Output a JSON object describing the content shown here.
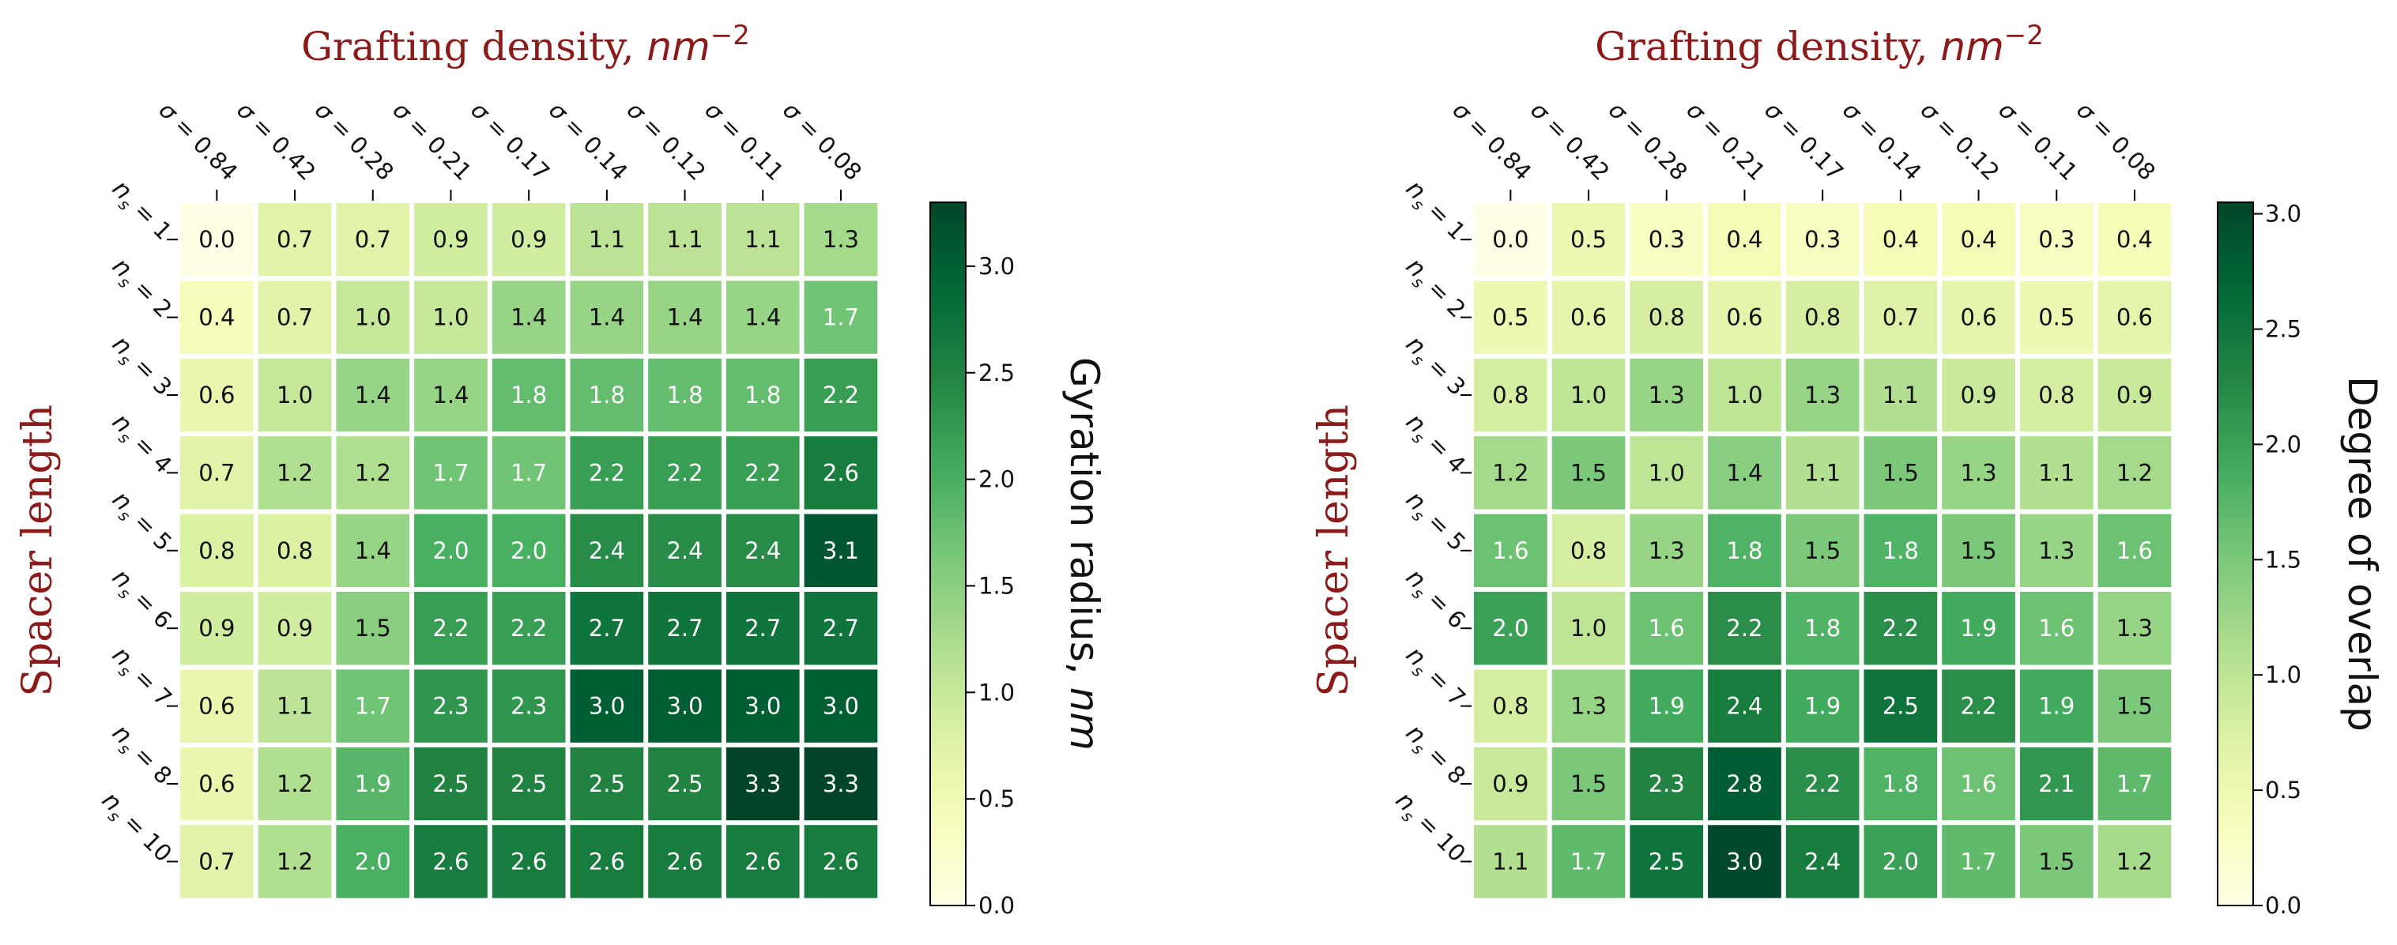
{
  "chart_data": [
    {
      "type": "heatmap",
      "title": "Grafting density, nm^-2",
      "title_main": "Grafting density, ",
      "title_unit": "nm",
      "title_exp": "−2",
      "ylabel": "Spacer length",
      "colorbar_label_main": "Gyration radius, ",
      "colorbar_label_unit": "nm",
      "colorbar_range": [
        0,
        3.3
      ],
      "colorbar_ticks": [
        "0.0",
        "0.5",
        "1.0",
        "1.5",
        "2.0",
        "2.5",
        "3.0"
      ],
      "colormap": "YlGn",
      "columns": [
        "σ = 0.84",
        "σ = 0.42",
        "σ = 0.28",
        "σ = 0.21",
        "σ = 0.17",
        "σ = 0.14",
        "σ = 0.12",
        "σ = 0.11",
        "σ = 0.08"
      ],
      "rows": [
        "1",
        "2",
        "3",
        "4",
        "5",
        "6",
        "7",
        "8",
        "10"
      ],
      "values": [
        [
          0.0,
          0.7,
          0.7,
          0.9,
          0.9,
          1.1,
          1.1,
          1.1,
          1.3
        ],
        [
          0.4,
          0.7,
          1.0,
          1.0,
          1.4,
          1.4,
          1.4,
          1.4,
          1.7
        ],
        [
          0.6,
          1.0,
          1.4,
          1.4,
          1.8,
          1.8,
          1.8,
          1.8,
          2.2
        ],
        [
          0.7,
          1.2,
          1.2,
          1.7,
          1.7,
          2.2,
          2.2,
          2.2,
          2.6
        ],
        [
          0.8,
          0.8,
          1.4,
          2.0,
          2.0,
          2.4,
          2.4,
          2.4,
          3.1
        ],
        [
          0.9,
          0.9,
          1.5,
          2.2,
          2.2,
          2.7,
          2.7,
          2.7,
          2.7
        ],
        [
          0.6,
          1.1,
          1.7,
          2.3,
          2.3,
          3.0,
          3.0,
          3.0,
          3.0
        ],
        [
          0.6,
          1.2,
          1.9,
          2.5,
          2.5,
          2.5,
          2.5,
          3.3,
          3.3
        ],
        [
          0.7,
          1.2,
          2.0,
          2.6,
          2.6,
          2.6,
          2.6,
          2.6,
          2.6
        ]
      ]
    },
    {
      "type": "heatmap",
      "title": "Grafting density, nm^-2",
      "title_main": "Grafting density, ",
      "title_unit": "nm",
      "title_exp": "−2",
      "ylabel": "Spacer length",
      "colorbar_label_main": "Degree of overlap",
      "colorbar_label_unit": "",
      "colorbar_range": [
        0,
        3.05
      ],
      "colorbar_ticks": [
        "0.0",
        "0.5",
        "1.0",
        "1.5",
        "2.0",
        "2.5",
        "3.0"
      ],
      "colormap": "YlGn",
      "columns": [
        "σ = 0.84",
        "σ = 0.42",
        "σ = 0.28",
        "σ = 0.21",
        "σ = 0.17",
        "σ = 0.14",
        "σ = 0.12",
        "σ = 0.11",
        "σ = 0.08"
      ],
      "rows": [
        "1",
        "2",
        "3",
        "4",
        "5",
        "6",
        "7",
        "8",
        "10"
      ],
      "values": [
        [
          0.0,
          0.5,
          0.3,
          0.4,
          0.3,
          0.4,
          0.4,
          0.3,
          0.4
        ],
        [
          0.5,
          0.6,
          0.8,
          0.6,
          0.8,
          0.7,
          0.6,
          0.5,
          0.6
        ],
        [
          0.8,
          1.0,
          1.3,
          1.0,
          1.3,
          1.1,
          0.9,
          0.8,
          0.9
        ],
        [
          1.2,
          1.5,
          1.0,
          1.4,
          1.1,
          1.5,
          1.3,
          1.1,
          1.2
        ],
        [
          1.6,
          0.8,
          1.3,
          1.8,
          1.5,
          1.8,
          1.5,
          1.3,
          1.6
        ],
        [
          2.0,
          1.0,
          1.6,
          2.2,
          1.8,
          2.2,
          1.9,
          1.6,
          1.3
        ],
        [
          0.8,
          1.3,
          1.9,
          2.4,
          1.9,
          2.5,
          2.2,
          1.9,
          1.5
        ],
        [
          0.9,
          1.5,
          2.3,
          2.8,
          2.2,
          1.8,
          1.6,
          2.1,
          1.7
        ],
        [
          1.1,
          1.7,
          2.5,
          3.0,
          2.4,
          2.0,
          1.7,
          1.5,
          1.2
        ]
      ]
    }
  ]
}
